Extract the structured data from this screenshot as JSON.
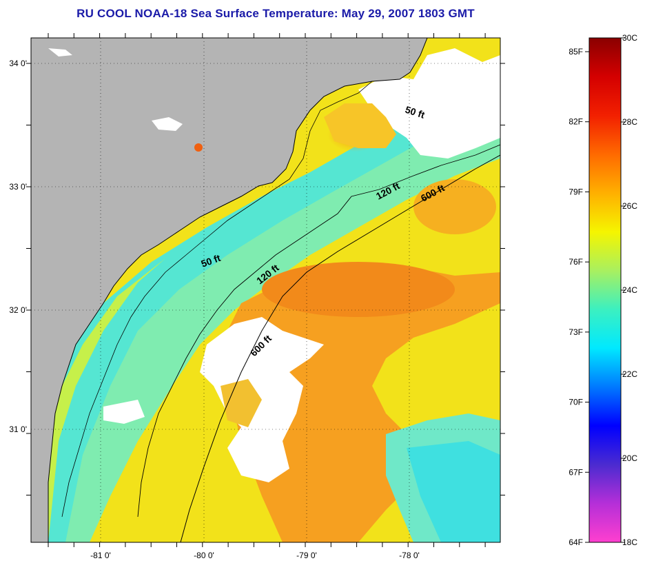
{
  "title": "RU COOL  NOAA-18  Sea Surface Temperature:  May 29, 2007 1803 GMT",
  "colors": {
    "land": "#b4b4b4",
    "cloud": "#ffffff",
    "coastline": "#000000",
    "title": "#1a1aa8"
  },
  "map": {
    "x_axis": {
      "ticks": [
        "-81 0'",
        "-80 0'",
        "-79 0'",
        "-78 0'"
      ]
    },
    "y_axis": {
      "ticks": [
        "34 0'",
        "33 0'",
        "32 0'",
        "31 0'"
      ]
    },
    "grid": "dotted"
  },
  "isobaths": [
    {
      "name": "50 ft",
      "labels": [
        "50 ft",
        "50 ft"
      ]
    },
    {
      "name": "120 ft",
      "labels": [
        "120 ft",
        "120 ft"
      ]
    },
    {
      "name": "600 ft",
      "labels": [
        "600 ft",
        "600 ft"
      ]
    }
  ],
  "colorbar": {
    "fahrenheit": [
      "85F",
      "82F",
      "79F",
      "76F",
      "73F",
      "70F",
      "67F",
      "64F"
    ],
    "celsius": [
      "30C",
      "28C",
      "26C",
      "24C",
      "22C",
      "20C",
      "18C"
    ],
    "gradient": [
      "#ff3fcf",
      "#b52fd8",
      "#4b2bd0",
      "#0000ff",
      "#0079ff",
      "#00e9ff",
      "#3cf0c0",
      "#a8f060",
      "#f5f500",
      "#ffb000",
      "#ff6a00",
      "#f22000",
      "#d40000",
      "#8a0000"
    ]
  }
}
